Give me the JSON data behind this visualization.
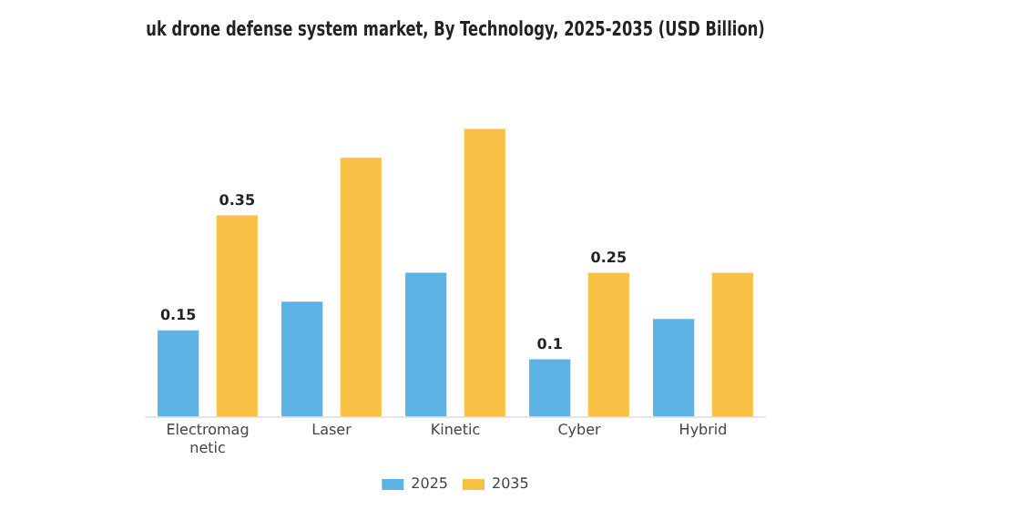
{
  "chart_data": {
    "type": "bar",
    "title": "uk drone defense system market, By Technology, 2025-2035 (USD Billion)",
    "categories": [
      "Electromagnetic",
      "Laser",
      "Kinetic",
      "Cyber",
      "Hybrid"
    ],
    "series": [
      {
        "name": "2025",
        "color": "#5db3e6",
        "values": [
          0.15,
          0.2,
          0.25,
          0.1,
          0.17
        ],
        "value_labels": [
          "0.15",
          null,
          null,
          "0.1",
          null
        ]
      },
      {
        "name": "2035",
        "color": "#f8c146",
        "values": [
          0.35,
          0.45,
          0.5,
          0.25,
          0.25
        ],
        "value_labels": [
          "0.35",
          null,
          null,
          "0.25",
          null
        ]
      }
    ],
    "tick_labels": "x",
    "grid": false,
    "legend": "bottom"
  }
}
